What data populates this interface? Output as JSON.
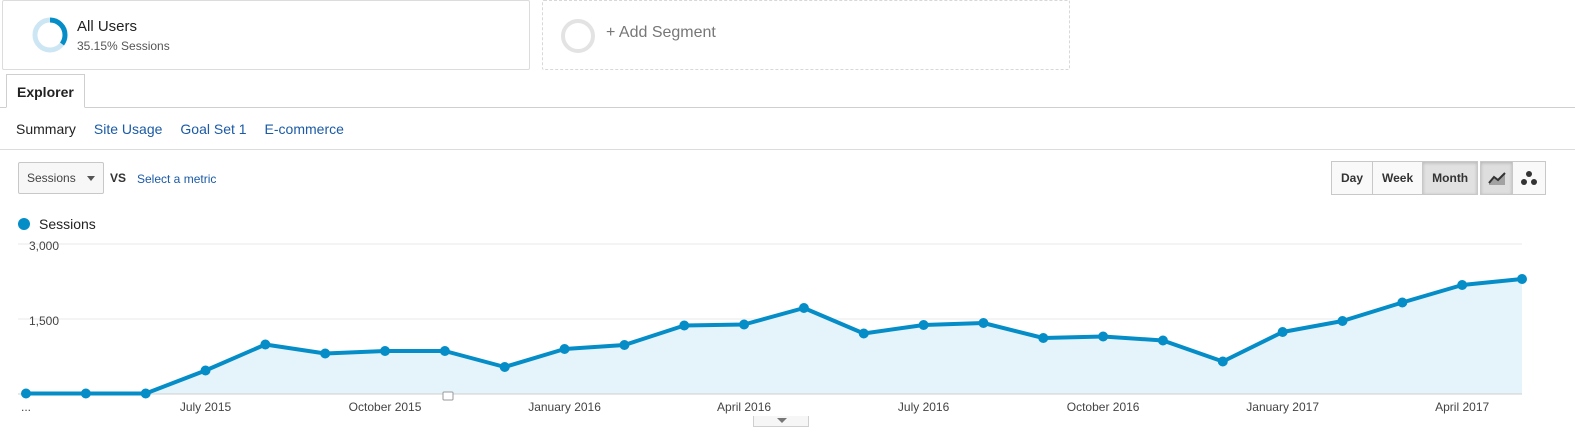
{
  "segments": {
    "active": {
      "title": "All Users",
      "subtitle": "35.15% Sessions",
      "ring_color": "#058dc7",
      "ring_fraction": 0.3515
    },
    "add_label": "+ Add Segment"
  },
  "tabs": {
    "explorer": "Explorer"
  },
  "subnav": {
    "summary": "Summary",
    "site_usage": "Site Usage",
    "goal_set": "Goal Set 1",
    "ecommerce": "E-commerce"
  },
  "controls": {
    "metric_value": "Sessions",
    "vs_label": "VS",
    "select_metric": "Select a metric",
    "periods": [
      "Day",
      "Week",
      "Month"
    ],
    "active_period": "Month",
    "chart_types": [
      "line-chart-icon",
      "motion-chart-icon"
    ]
  },
  "legend": {
    "label": "Sessions",
    "color": "#058dc7"
  },
  "chart_data": {
    "type": "area",
    "series": [
      {
        "name": "Sessions",
        "color": "#058dc7",
        "values": [
          10,
          10,
          10,
          470,
          990,
          810,
          860,
          860,
          540,
          900,
          980,
          1370,
          1390,
          1720,
          1210,
          1380,
          1420,
          1120,
          1150,
          1070,
          650,
          1240,
          1460,
          1830,
          2180,
          2300
        ]
      }
    ],
    "ylim": [
      0,
      3000
    ],
    "yticks": [
      {
        "value": 1500,
        "label": "1,500"
      },
      {
        "value": 3000,
        "label": "3,000"
      }
    ],
    "xticks": [
      {
        "index": 0,
        "label": "..."
      },
      {
        "index": 3,
        "label": "July 2015"
      },
      {
        "index": 6,
        "label": "October 2015"
      },
      {
        "index": 9,
        "label": "January 2016"
      },
      {
        "index": 12,
        "label": "April 2016"
      },
      {
        "index": 15,
        "label": "July 2016"
      },
      {
        "index": 18,
        "label": "October 2016"
      },
      {
        "index": 21,
        "label": "January 2017"
      },
      {
        "index": 24,
        "label": "April 2017"
      }
    ],
    "grid": true
  }
}
